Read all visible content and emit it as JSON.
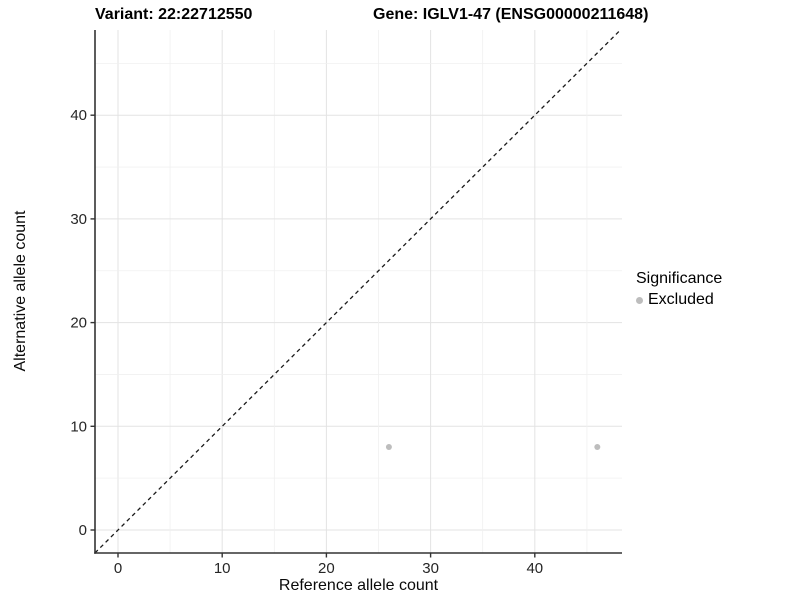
{
  "titles": {
    "left": "Variant: 22:22712550",
    "right": "Gene: IGLV1-47 (ENSG00000211648)"
  },
  "axes": {
    "x": {
      "label": "Reference allele count",
      "ticks": [
        0,
        10,
        20,
        30,
        40
      ]
    },
    "y": {
      "label": "Alternative allele count",
      "ticks": [
        0,
        10,
        20,
        30,
        40
      ]
    }
  },
  "legend": {
    "title": "Significance",
    "items": [
      {
        "label": "Excluded",
        "color": "#bdbdbd"
      }
    ]
  },
  "colors": {
    "axis_line": "#333333",
    "tick_text": "#262626",
    "grid_major": "#e3e3e3",
    "grid_minor": "#f0f0f0",
    "identity_line": "#1a1a1a",
    "point": "#bdbdbd",
    "background": "#ffffff"
  },
  "chart_data": {
    "type": "scatter",
    "title": "Variant: 22:22712550 — Gene: IGLV1-47 (ENSG00000211648)",
    "xlabel": "Reference allele count",
    "ylabel": "Alternative allele count",
    "xlim": [
      -2.2,
      48.4
    ],
    "ylim": [
      -2.3,
      48.2
    ],
    "x_ticks": [
      0,
      10,
      20,
      30,
      40
    ],
    "y_ticks": [
      0,
      10,
      20,
      30,
      40
    ],
    "minor_grid_step": 5,
    "grid": true,
    "legend_position": "right",
    "series": [
      {
        "name": "Excluded",
        "color": "#bdbdbd",
        "points": [
          {
            "x": 26,
            "y": 8
          },
          {
            "x": 46,
            "y": 8
          }
        ]
      }
    ],
    "reference_line": {
      "type": "identity",
      "slope": 1,
      "intercept": 0,
      "style": "dashed",
      "color": "#1a1a1a"
    }
  }
}
